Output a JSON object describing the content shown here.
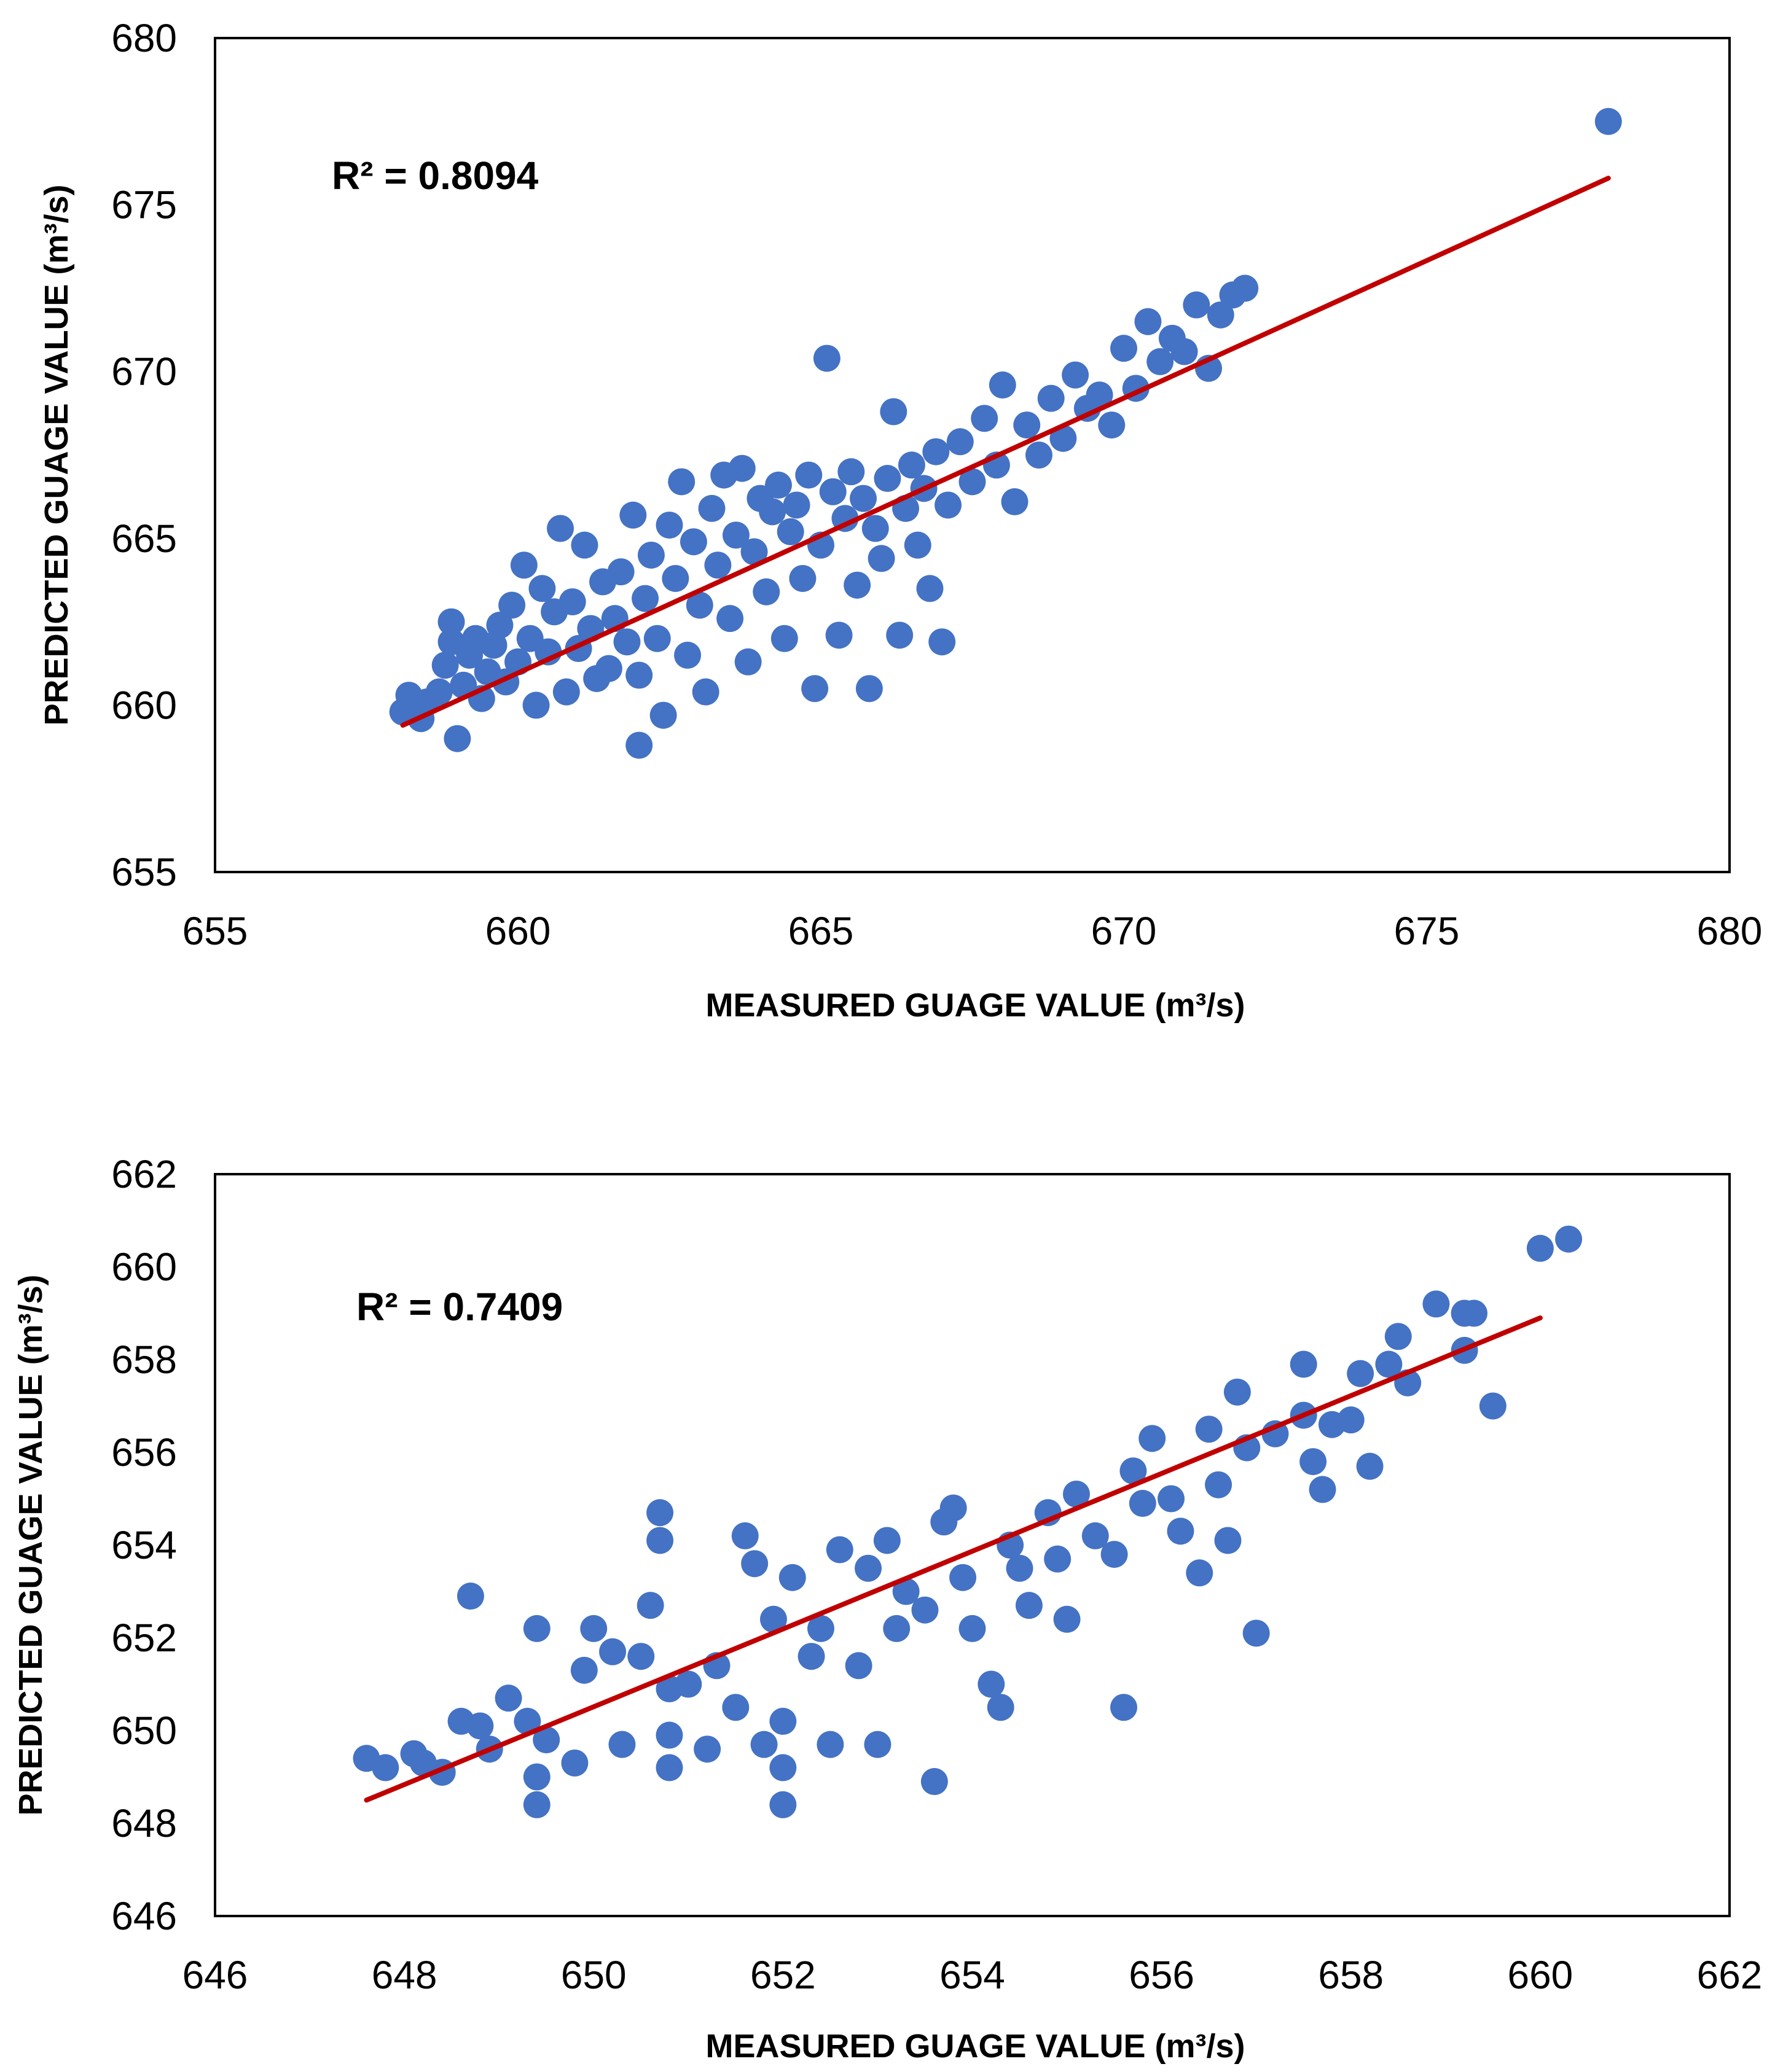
{
  "colors": {
    "points": "#4472C4",
    "trendline": "#C00000",
    "frame": "#000000"
  },
  "chart_data": [
    {
      "type": "scatter",
      "title": "",
      "xlabel": "MEASURED GUAGE VALUE (m³/s)",
      "ylabel": "PREDICTED GUAGE VALUE (m³/s)",
      "annotation": "R² = 0.8094",
      "xlim": [
        655,
        680
      ],
      "ylim": [
        655,
        680
      ],
      "xticks": [
        655,
        660,
        665,
        670,
        675,
        680
      ],
      "yticks": [
        655,
        660,
        665,
        670,
        675,
        680
      ],
      "grid": false,
      "trendline": {
        "x1": 658.1,
        "y1": 659.4,
        "x2": 678.0,
        "y2": 675.8
      },
      "points": [
        [
          658.1,
          659.8
        ],
        [
          658.2,
          660.3
        ],
        [
          658.4,
          659.6
        ],
        [
          658.5,
          660.1
        ],
        [
          658.7,
          660.4
        ],
        [
          658.8,
          661.2
        ],
        [
          658.9,
          661.9
        ],
        [
          658.9,
          662.5
        ],
        [
          659.0,
          659.0
        ],
        [
          659.1,
          660.6
        ],
        [
          659.2,
          661.5
        ],
        [
          659.3,
          662.0
        ],
        [
          659.4,
          660.2
        ],
        [
          659.5,
          661.0
        ],
        [
          659.6,
          661.8
        ],
        [
          659.7,
          662.4
        ],
        [
          659.8,
          660.7
        ],
        [
          659.9,
          663.0
        ],
        [
          660.0,
          661.3
        ],
        [
          660.1,
          664.2
        ],
        [
          660.2,
          662.0
        ],
        [
          660.3,
          660.0
        ],
        [
          660.4,
          663.5
        ],
        [
          660.5,
          661.6
        ],
        [
          660.6,
          662.8
        ],
        [
          660.7,
          665.3
        ],
        [
          660.8,
          660.4
        ],
        [
          660.9,
          663.1
        ],
        [
          661.0,
          661.7
        ],
        [
          661.1,
          664.8
        ],
        [
          661.2,
          662.3
        ],
        [
          661.3,
          660.8
        ],
        [
          661.4,
          663.7
        ],
        [
          661.5,
          661.1
        ],
        [
          661.6,
          662.6
        ],
        [
          661.7,
          664.0
        ],
        [
          661.8,
          661.9
        ],
        [
          661.9,
          665.7
        ],
        [
          662.0,
          658.8
        ],
        [
          662.0,
          660.9
        ],
        [
          662.1,
          663.2
        ],
        [
          662.2,
          664.5
        ],
        [
          662.3,
          662.0
        ],
        [
          662.4,
          659.7
        ],
        [
          662.5,
          665.4
        ],
        [
          662.6,
          663.8
        ],
        [
          662.7,
          666.7
        ],
        [
          662.8,
          661.5
        ],
        [
          662.9,
          664.9
        ],
        [
          663.0,
          663.0
        ],
        [
          663.1,
          660.4
        ],
        [
          663.2,
          665.9
        ],
        [
          663.3,
          664.2
        ],
        [
          663.4,
          666.9
        ],
        [
          663.5,
          662.6
        ],
        [
          663.6,
          665.1
        ],
        [
          663.7,
          667.1
        ],
        [
          663.8,
          661.3
        ],
        [
          663.9,
          664.6
        ],
        [
          664.0,
          666.2
        ],
        [
          664.1,
          663.4
        ],
        [
          664.2,
          665.8
        ],
        [
          664.3,
          666.6
        ],
        [
          664.4,
          662.0
        ],
        [
          664.5,
          665.2
        ],
        [
          664.6,
          666.0
        ],
        [
          664.7,
          663.8
        ],
        [
          664.8,
          666.9
        ],
        [
          664.9,
          660.5
        ],
        [
          665.0,
          664.8
        ],
        [
          665.1,
          670.4
        ],
        [
          665.2,
          666.4
        ],
        [
          665.3,
          662.1
        ],
        [
          665.4,
          665.6
        ],
        [
          665.5,
          667.0
        ],
        [
          665.6,
          663.6
        ],
        [
          665.7,
          666.2
        ],
        [
          665.8,
          660.5
        ],
        [
          665.9,
          665.3
        ],
        [
          666.0,
          664.4
        ],
        [
          666.1,
          666.8
        ],
        [
          666.2,
          668.8
        ],
        [
          666.3,
          662.1
        ],
        [
          666.4,
          665.9
        ],
        [
          666.5,
          667.2
        ],
        [
          666.6,
          664.8
        ],
        [
          666.7,
          666.5
        ],
        [
          666.8,
          663.5
        ],
        [
          666.9,
          667.6
        ],
        [
          667.0,
          661.9
        ],
        [
          667.1,
          666.0
        ],
        [
          667.3,
          667.9
        ],
        [
          667.5,
          666.7
        ],
        [
          667.7,
          668.6
        ],
        [
          667.9,
          667.2
        ],
        [
          668.0,
          669.6
        ],
        [
          668.2,
          666.1
        ],
        [
          668.4,
          668.4
        ],
        [
          668.6,
          667.5
        ],
        [
          668.8,
          669.2
        ],
        [
          669.0,
          668.0
        ],
        [
          669.2,
          669.9
        ],
        [
          669.4,
          668.9
        ],
        [
          669.6,
          669.3
        ],
        [
          669.8,
          668.4
        ],
        [
          670.0,
          670.7
        ],
        [
          670.2,
          669.5
        ],
        [
          670.4,
          671.5
        ],
        [
          670.6,
          670.3
        ],
        [
          670.8,
          671.0
        ],
        [
          671.0,
          670.6
        ],
        [
          671.2,
          672.0
        ],
        [
          671.4,
          670.1
        ],
        [
          671.6,
          671.7
        ],
        [
          671.8,
          672.3
        ],
        [
          672.0,
          672.5
        ],
        [
          678.0,
          677.5
        ]
      ]
    },
    {
      "type": "scatter",
      "title": "",
      "xlabel": "MEASURED GUAGE VALUE (m³/s)",
      "ylabel": "PREDICTED GUAGE VALUE (m³/s)",
      "annotation": "R² = 0.7409",
      "xlim": [
        646,
        662
      ],
      "ylim": [
        646,
        662
      ],
      "xticks": [
        646,
        648,
        650,
        652,
        654,
        656,
        658,
        660,
        662
      ],
      "yticks": [
        646,
        648,
        650,
        652,
        654,
        656,
        658,
        660,
        662
      ],
      "grid": false,
      "trendline": {
        "x1": 647.6,
        "y1": 648.5,
        "x2": 660.0,
        "y2": 658.9
      },
      "points": [
        [
          647.6,
          649.4
        ],
        [
          647.8,
          649.2
        ],
        [
          648.1,
          649.5
        ],
        [
          648.2,
          649.3
        ],
        [
          648.4,
          649.1
        ],
        [
          648.6,
          650.2
        ],
        [
          648.7,
          652.9
        ],
        [
          648.8,
          650.1
        ],
        [
          648.9,
          649.6
        ],
        [
          649.1,
          650.7
        ],
        [
          649.3,
          650.2
        ],
        [
          649.4,
          652.2
        ],
        [
          649.4,
          648.4
        ],
        [
          649.4,
          649.0
        ],
        [
          649.5,
          649.8
        ],
        [
          649.8,
          649.3
        ],
        [
          649.9,
          651.3
        ],
        [
          650.0,
          652.2
        ],
        [
          650.2,
          651.7
        ],
        [
          650.3,
          649.7
        ],
        [
          650.5,
          651.6
        ],
        [
          650.6,
          652.7
        ],
        [
          650.7,
          654.7
        ],
        [
          650.7,
          654.1
        ],
        [
          650.8,
          650.9
        ],
        [
          650.8,
          649.9
        ],
        [
          650.8,
          649.2
        ],
        [
          651.0,
          651.0
        ],
        [
          651.2,
          649.6
        ],
        [
          651.3,
          651.4
        ],
        [
          651.5,
          650.5
        ],
        [
          651.6,
          654.2
        ],
        [
          651.7,
          653.6
        ],
        [
          651.8,
          649.7
        ],
        [
          651.9,
          652.4
        ],
        [
          652.0,
          648.4
        ],
        [
          652.0,
          649.2
        ],
        [
          652.0,
          650.2
        ],
        [
          652.1,
          653.3
        ],
        [
          652.3,
          651.6
        ],
        [
          652.4,
          652.2
        ],
        [
          652.5,
          649.7
        ],
        [
          652.6,
          653.9
        ],
        [
          652.8,
          651.4
        ],
        [
          652.9,
          653.5
        ],
        [
          653.0,
          649.7
        ],
        [
          653.1,
          654.1
        ],
        [
          653.2,
          652.2
        ],
        [
          653.3,
          653.0
        ],
        [
          653.5,
          652.6
        ],
        [
          653.6,
          648.9
        ],
        [
          653.7,
          654.5
        ],
        [
          653.8,
          654.8
        ],
        [
          653.9,
          653.3
        ],
        [
          654.0,
          652.2
        ],
        [
          654.2,
          651.0
        ],
        [
          654.3,
          650.5
        ],
        [
          654.4,
          654.0
        ],
        [
          654.5,
          653.5
        ],
        [
          654.6,
          652.7
        ],
        [
          654.8,
          654.7
        ],
        [
          654.9,
          653.7
        ],
        [
          655.0,
          652.4
        ],
        [
          655.1,
          655.1
        ],
        [
          655.3,
          654.2
        ],
        [
          655.5,
          653.8
        ],
        [
          655.6,
          650.5
        ],
        [
          655.7,
          655.6
        ],
        [
          655.8,
          654.9
        ],
        [
          655.9,
          656.3
        ],
        [
          656.1,
          655.0
        ],
        [
          656.2,
          654.3
        ],
        [
          656.4,
          653.4
        ],
        [
          656.5,
          656.5
        ],
        [
          656.6,
          655.3
        ],
        [
          656.7,
          654.1
        ],
        [
          656.8,
          657.3
        ],
        [
          656.9,
          656.1
        ],
        [
          657.0,
          652.1
        ],
        [
          657.2,
          656.4
        ],
        [
          657.5,
          657.9
        ],
        [
          657.5,
          656.8
        ],
        [
          657.6,
          655.8
        ],
        [
          657.7,
          655.2
        ],
        [
          657.8,
          656.6
        ],
        [
          658.0,
          656.7
        ],
        [
          658.1,
          657.7
        ],
        [
          658.2,
          655.7
        ],
        [
          658.4,
          657.9
        ],
        [
          658.5,
          658.5
        ],
        [
          658.6,
          657.5
        ],
        [
          658.9,
          659.2
        ],
        [
          659.2,
          658.2
        ],
        [
          659.2,
          659.0
        ],
        [
          659.3,
          659.0
        ],
        [
          659.5,
          657.0
        ],
        [
          660.0,
          660.4
        ],
        [
          660.3,
          660.6
        ]
      ]
    }
  ]
}
